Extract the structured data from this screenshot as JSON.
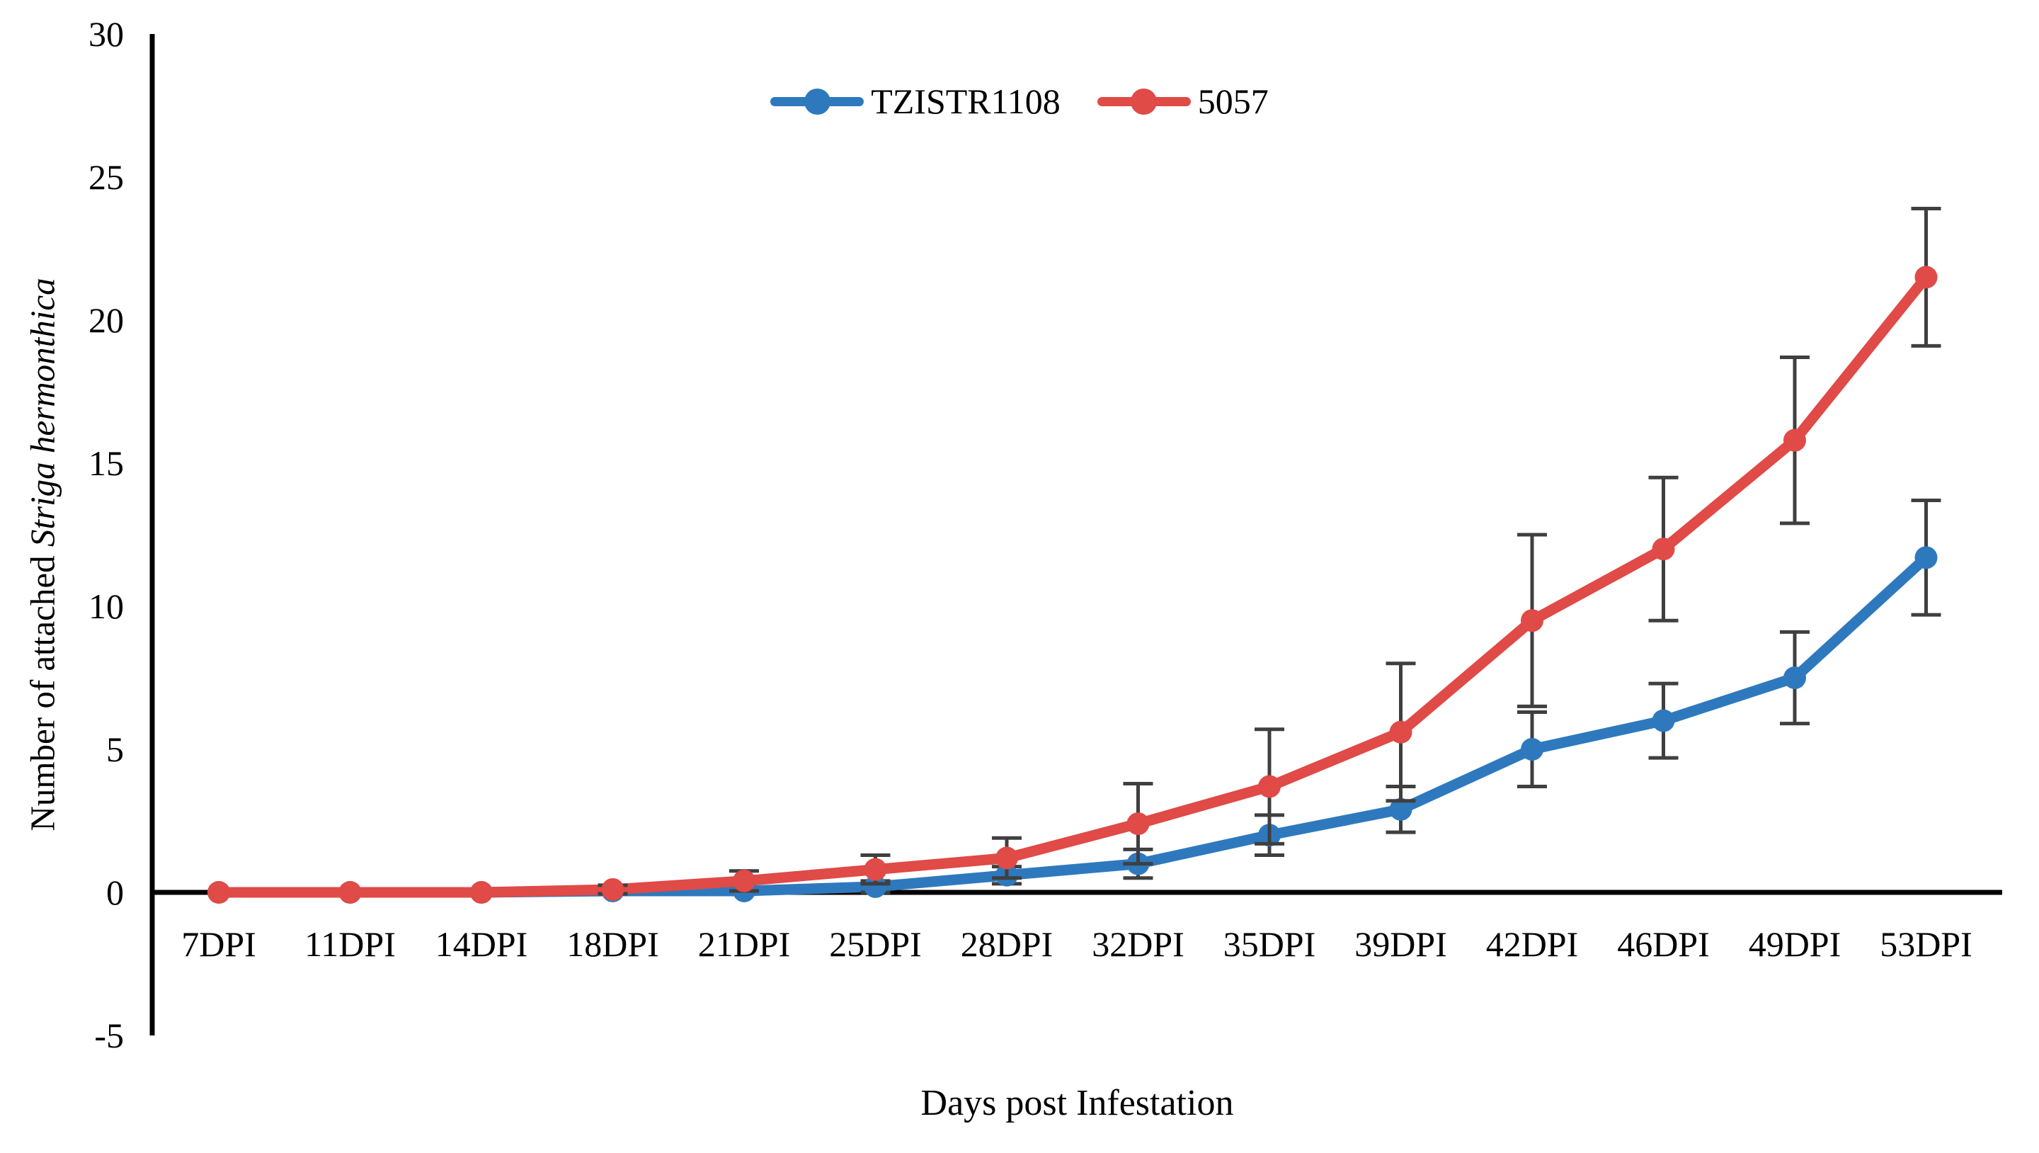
{
  "chart_data": {
    "type": "line",
    "title": "",
    "xlabel": "Days post Infestation",
    "ylabel_regular": "Number of attached",
    "ylabel_italic": "Striga hermonthica",
    "categories": [
      "7DPI",
      "11DPI",
      "14DPI",
      "18DPI",
      "21DPI",
      "25DPI",
      "28DPI",
      "32DPI",
      "35DPI",
      "39DPI",
      "42DPI",
      "46DPI",
      "49DPI",
      "53DPI"
    ],
    "ylim": [
      -5,
      30
    ],
    "yticks": [
      30,
      25,
      20,
      15,
      10,
      5,
      0,
      -5
    ],
    "grid": false,
    "legend_position": "top-center",
    "error_bar_color": "#3f3f3f",
    "axis_color": "#000000",
    "series": [
      {
        "name": "TZISTR1108",
        "color": "#2e79be",
        "values": [
          0,
          0,
          0,
          0.05,
          0.05,
          0.2,
          0.6,
          1.0,
          2.0,
          2.9,
          5.0,
          6.0,
          7.5,
          11.7
        ],
        "errors": [
          0,
          0,
          0,
          0,
          0,
          0.2,
          0.3,
          0.5,
          0.7,
          0.8,
          1.3,
          1.3,
          1.6,
          2.0
        ]
      },
      {
        "name": "5057",
        "color": "#e04a47",
        "values": [
          0,
          0,
          0,
          0.1,
          0.4,
          0.8,
          1.2,
          2.4,
          3.7,
          5.6,
          9.5,
          12.0,
          15.8,
          21.5
        ],
        "errors": [
          0,
          0,
          0,
          0.15,
          0.35,
          0.5,
          0.7,
          1.4,
          2.0,
          2.4,
          3.0,
          2.5,
          2.9,
          2.4
        ]
      }
    ]
  }
}
